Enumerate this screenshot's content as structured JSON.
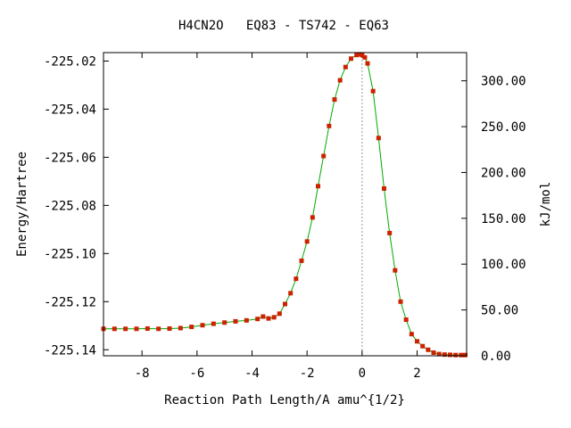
{
  "chart_data": {
    "type": "line",
    "title": "H4CN2O   EQ83 - TS742 - EQ63",
    "xlabel": "Reaction Path Length/A amu^{1/2}",
    "ylabel": "Energy/Hartree",
    "y2label": "kJ/mol",
    "xlim": [
      -9.4,
      3.8
    ],
    "ylim": [
      -225.1425,
      -225.0165
    ],
    "y2lim": [
      0,
      330.8
    ],
    "x_ticks": [
      -8,
      -6,
      -4,
      -2,
      0,
      2
    ],
    "x_tick_labels": [
      "-8",
      "-6",
      "-4",
      "-2",
      "0",
      "2"
    ],
    "y_ticks": [
      -225.14,
      -225.12,
      -225.1,
      -225.08,
      -225.06,
      -225.04,
      -225.02
    ],
    "y_tick_labels": [
      "-225.14",
      "-225.12",
      "-225.10",
      "-225.08",
      "-225.06",
      "-225.04",
      "-225.02"
    ],
    "y2_ticks": [
      0,
      50,
      100,
      150,
      200,
      250,
      300
    ],
    "y2_tick_labels": [
      "0.00",
      "50.00",
      "100.00",
      "150.00",
      "200.00",
      "250.00",
      "300.00"
    ],
    "ts_x": 0,
    "line_color": "#00aa00",
    "marker_color": "#cc2200",
    "ts_line_color": "#999999",
    "grid": false,
    "series": [
      {
        "x": [
          -9.4,
          -9.0,
          -8.6,
          -8.2,
          -7.8,
          -7.4,
          -7.0,
          -6.6,
          -6.2,
          -5.8,
          -5.4,
          -5.0,
          -4.6,
          -4.2,
          -3.8,
          -3.6,
          -3.4,
          -3.2,
          -3.0,
          -2.8,
          -2.6,
          -2.4,
          -2.2,
          -2.0,
          -1.8,
          -1.6,
          -1.4,
          -1.2,
          -1.0,
          -0.8,
          -0.6,
          -0.4,
          -0.2,
          -0.1,
          0.0,
          0.1,
          0.2,
          0.4,
          0.6,
          0.8,
          1.0,
          1.2,
          1.4,
          1.6,
          1.8,
          2.0,
          2.2,
          2.4,
          2.6,
          2.8,
          3.0,
          3.2,
          3.4,
          3.6,
          3.75
        ],
        "y": [
          -225.1313,
          -225.1313,
          -225.1313,
          -225.1313,
          -225.1312,
          -225.1313,
          -225.1312,
          -225.131,
          -225.1305,
          -225.1298,
          -225.1292,
          -225.1287,
          -225.1282,
          -225.1278,
          -225.1272,
          -225.1262,
          -225.127,
          -225.1265,
          -225.125,
          -225.121,
          -225.1165,
          -225.1105,
          -225.103,
          -225.095,
          -225.085,
          -225.072,
          -225.0595,
          -225.047,
          -225.036,
          -225.028,
          -225.0225,
          -225.019,
          -225.0175,
          -225.0172,
          -225.0175,
          -225.0185,
          -225.021,
          -225.0325,
          -225.052,
          -225.073,
          -225.0915,
          -225.107,
          -225.12,
          -225.1275,
          -225.1335,
          -225.1365,
          -225.1385,
          -225.14,
          -225.1412,
          -225.1418,
          -225.142,
          -225.1421,
          -225.1422,
          -225.1422,
          -225.1422
        ]
      }
    ]
  }
}
